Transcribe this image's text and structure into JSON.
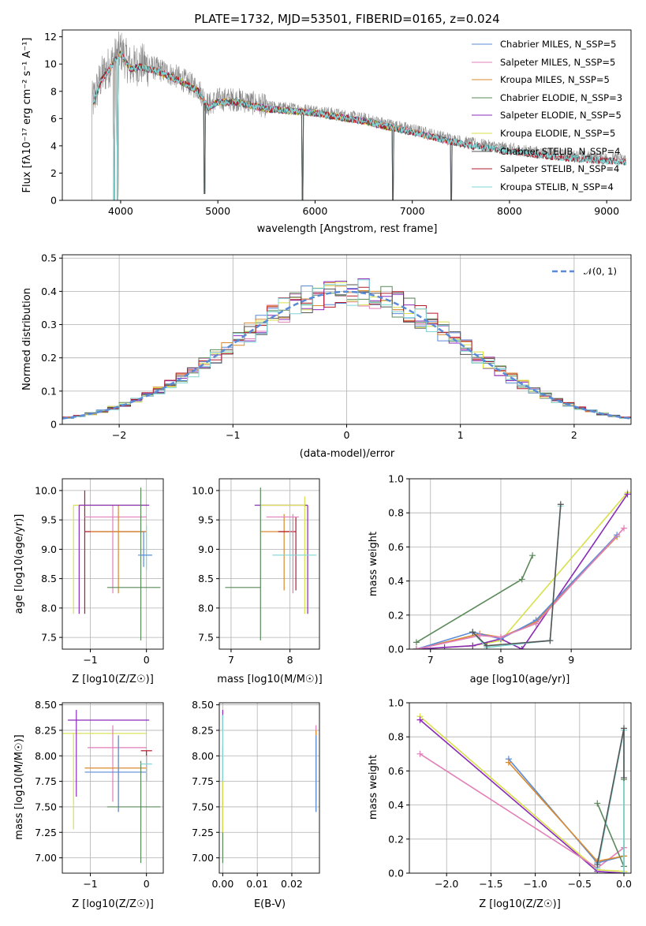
{
  "title": "PLATE=1732, MJD=53501, FIBERID=0165, z=0.024",
  "colors": {
    "chabrier_miles": "#5b8bd6",
    "salpeter_miles": "#e27fb8",
    "kroupa_miles": "#d98a2e",
    "chabrier_elodie": "#5a8a5a",
    "salpeter_elodie": "#8a2bb8",
    "kroupa_elodie": "#d8e04a",
    "chabrier_stelib": "#555555",
    "salpeter_stelib": "#b31b2c",
    "kroupa_stelib": "#7fd6d6",
    "data": "#8a8a8a",
    "normal": "#5b8bd6"
  },
  "spectrum_panel": {
    "xlabel": "wavelength [Angstrom, rest frame]",
    "ylabel": "Flux [fλ10⁻¹⁷ erg cm⁻² s⁻¹ A⁻¹]",
    "legend": [
      "Chabrier MILES, N_SSP=5",
      "Salpeter MILES, N_SSP=5",
      "Kroupa MILES, N_SSP=5",
      "Chabrier ELODIE, N_SSP=3",
      "Salpeter ELODIE, N_SSP=5",
      "Kroupa ELODIE, N_SSP=5",
      "Chabrier STELIB, N_SSP=4",
      "Salpeter STELIB, N_SSP=4",
      "Kroupa STELIB, N_SSP=4"
    ]
  },
  "hist_panel": {
    "xlabel": "(data-model)/error",
    "ylabel": "Normed distribution",
    "legend": "𝒩(0, 1)"
  },
  "age_Z": {
    "xlabel": "Z [log10(Z/Z☉)]",
    "ylabel": "age  [log10(age/yr)]"
  },
  "age_mass": {
    "xlabel": "mass [log10(M/M☉)]"
  },
  "age_weight": {
    "xlabel": "age  [log10(age/yr)]",
    "ylabel": "mass weight"
  },
  "mass_Z": {
    "xlabel": "Z [log10(Z/Z☉)]",
    "ylabel": "mass [log10(M/M☉)]"
  },
  "mass_ebv": {
    "xlabel": "E(B-V)"
  },
  "Z_weight": {
    "xlabel": "Z [log10(Z/Z☉)]",
    "ylabel": "mass weight"
  },
  "chart_data": [
    {
      "type": "line",
      "name": "spectrum",
      "xlim": [
        3400,
        9250
      ],
      "ylim": [
        0,
        12.5
      ],
      "xticks": [
        4000,
        5000,
        6000,
        7000,
        8000,
        9000
      ],
      "yticks": [
        0,
        2,
        4,
        6,
        8,
        10,
        12
      ],
      "continuum": {
        "x": [
          3700,
          3800,
          3900,
          4000,
          4100,
          4200,
          4400,
          4600,
          4800,
          4900,
          5000,
          5200,
          5500,
          6000,
          6500,
          7000,
          7400,
          7600,
          7800,
          8000,
          8200,
          8600,
          9000,
          9200
        ],
        "y": [
          7.0,
          9.0,
          10.0,
          11.0,
          9.8,
          10.0,
          9.6,
          9.0,
          8.2,
          7.0,
          7.4,
          7.4,
          6.9,
          6.6,
          6.0,
          5.2,
          4.5,
          4.2,
          4.0,
          3.8,
          3.6,
          3.3,
          3.1,
          3.0
        ]
      },
      "dips": [
        {
          "x": 3934,
          "y": 0
        },
        {
          "x": 3968,
          "y": 0
        },
        {
          "x": 4861,
          "y": 0.5
        },
        {
          "x": 5870,
          "y": 0
        },
        {
          "x": 6800,
          "y": 0
        },
        {
          "x": 7400,
          "y": 0
        }
      ]
    },
    {
      "type": "line",
      "name": "residual histogram",
      "xlim": [
        -2.5,
        2.5
      ],
      "ylim": [
        0,
        0.51
      ],
      "xticks": [
        -2,
        -1,
        0,
        1,
        2
      ],
      "yticks": [
        0.0,
        0.1,
        0.2,
        0.3,
        0.4,
        0.5
      ],
      "normal": {
        "mean": 0,
        "sigma": 1
      }
    },
    {
      "type": "scatter",
      "name": "age vs Z",
      "xlim": [
        -1.5,
        0.3
      ],
      "ylim": [
        7.3,
        10.2
      ],
      "xticks": [
        -1,
        0
      ],
      "yticks": [
        7.5,
        8.0,
        8.5,
        9.0,
        9.5,
        10.0
      ],
      "points": [
        {
          "x": -1.1,
          "y": 9.3,
          "xe": [
            -1.1,
            0.0
          ],
          "ye": [
            7.9,
            10.0
          ],
          "c": "salpeter_stelib"
        },
        {
          "x": -0.6,
          "y": 9.55,
          "xe": [
            -1.1,
            0.0
          ],
          "ye": [
            8.25,
            9.75
          ],
          "c": "salpeter_miles"
        },
        {
          "x": -0.5,
          "y": 9.3,
          "xe": [
            -1.0,
            0.0
          ],
          "ye": [
            8.25,
            9.75
          ],
          "c": "kroupa_miles"
        },
        {
          "x": -1.3,
          "y": 9.75,
          "xe": [
            -1.3,
            0.0
          ],
          "ye": [
            7.9,
            9.75
          ],
          "c": "kroupa_elodie"
        },
        {
          "x": -1.2,
          "y": 9.75,
          "xe": [
            -1.2,
            0.05
          ],
          "ye": [
            7.9,
            9.75
          ],
          "c": "salpeter_elodie"
        },
        {
          "x": -0.1,
          "y": 8.35,
          "xe": [
            -0.7,
            0.25
          ],
          "ye": [
            7.45,
            10.05
          ],
          "c": "chabrier_elodie"
        },
        {
          "x": 0.0,
          "y": 8.9,
          "xe": [
            -0.1,
            0.1
          ],
          "ye": [
            8.65,
            9.4
          ],
          "c": "kroupa_stelib"
        },
        {
          "x": -0.05,
          "y": 8.9,
          "xe": [
            -0.15,
            0.1
          ],
          "ye": [
            8.7,
            9.3
          ],
          "c": "chabrier_miles"
        }
      ]
    },
    {
      "type": "scatter",
      "name": "age vs mass",
      "xlim": [
        6.8,
        8.5
      ],
      "ylim": [
        7.3,
        10.2
      ],
      "xticks": [
        7,
        8
      ],
      "yticks": [
        7.5,
        8.0,
        8.5,
        9.0,
        9.5,
        10.0
      ],
      "points": [
        {
          "x": 7.9,
          "y": 9.3,
          "xe": [
            7.5,
            8.0
          ],
          "ye": [
            8.3,
            9.6
          ],
          "c": "kroupa_miles"
        },
        {
          "x": 8.1,
          "y": 9.3,
          "xe": [
            7.8,
            8.1
          ],
          "ye": [
            8.3,
            9.55
          ],
          "c": "salpeter_stelib"
        },
        {
          "x": 8.05,
          "y": 9.55,
          "xe": [
            7.6,
            8.15
          ],
          "ye": [
            8.25,
            9.6
          ],
          "c": "salpeter_miles"
        },
        {
          "x": 8.3,
          "y": 9.75,
          "xe": [
            7.4,
            8.3
          ],
          "ye": [
            7.9,
            9.75
          ],
          "c": "salpeter_elodie"
        },
        {
          "x": 8.25,
          "y": 9.75,
          "xe": [
            7.5,
            8.25
          ],
          "ye": [
            7.9,
            9.9
          ],
          "c": "kroupa_elodie"
        },
        {
          "x": 7.5,
          "y": 8.35,
          "xe": [
            6.9,
            7.5
          ],
          "ye": [
            7.45,
            10.05
          ],
          "c": "chabrier_elodie"
        },
        {
          "x": 8.0,
          "y": 8.9,
          "xe": [
            7.7,
            8.45
          ],
          "ye": [
            8.5,
            9.5
          ],
          "c": "kroupa_stelib"
        }
      ]
    },
    {
      "type": "line",
      "name": "mass weight vs age",
      "xlim": [
        6.7,
        9.85
      ],
      "ylim": [
        0,
        1.0
      ],
      "xticks": [
        7,
        8,
        9
      ],
      "yticks": [
        0.0,
        0.2,
        0.4,
        0.6,
        0.8,
        1.0
      ],
      "series": [
        {
          "c": "chabrier_elodie",
          "x": [
            6.8,
            8.3,
            8.45
          ],
          "y": [
            0.04,
            0.41,
            0.55
          ]
        },
        {
          "c": "kroupa_elodie",
          "x": [
            6.8,
            7.6,
            8.0,
            9.8
          ],
          "y": [
            0.0,
            0.02,
            0.05,
            0.92
          ]
        },
        {
          "c": "salpeter_elodie",
          "x": [
            6.8,
            7.2,
            7.6,
            8.0,
            8.3,
            9.8
          ],
          "y": [
            0.0,
            0.01,
            0.02,
            0.06,
            0.0,
            0.91
          ]
        },
        {
          "c": "kroupa_miles",
          "x": [
            6.8,
            7.7,
            8.0,
            8.5,
            9.65
          ],
          "y": [
            0.0,
            0.09,
            0.07,
            0.16,
            0.66
          ]
        },
        {
          "c": "chabrier_miles",
          "x": [
            6.8,
            7.6,
            8.0,
            8.5,
            9.65
          ],
          "y": [
            0.0,
            0.1,
            0.06,
            0.17,
            0.67
          ]
        },
        {
          "c": "salpeter_miles",
          "x": [
            6.8,
            7.7,
            8.0,
            8.5,
            9.75
          ],
          "y": [
            0.0,
            0.08,
            0.07,
            0.15,
            0.71
          ]
        },
        {
          "c": "kroupa_stelib",
          "x": [
            7.6,
            7.8,
            8.7,
            8.85
          ],
          "y": [
            0.1,
            0.01,
            0.05,
            0.84
          ]
        },
        {
          "c": "chabrier_stelib",
          "x": [
            7.6,
            7.8,
            8.7,
            8.85
          ],
          "y": [
            0.1,
            0.02,
            0.05,
            0.85
          ]
        }
      ]
    },
    {
      "type": "scatter",
      "name": "mass vs Z",
      "xlim": [
        -1.5,
        0.3
      ],
      "ylim": [
        6.85,
        8.52
      ],
      "xticks": [
        -1,
        0
      ],
      "yticks": [
        7.0,
        7.25,
        7.5,
        7.75,
        8.0,
        8.25,
        8.5
      ],
      "points": [
        {
          "x": -1.3,
          "y": 8.22,
          "xe": [
            -1.5,
            0.0
          ],
          "ye": [
            7.28,
            8.22
          ],
          "c": "kroupa_elodie"
        },
        {
          "x": -1.25,
          "y": 8.35,
          "xe": [
            -1.4,
            0.05
          ],
          "ye": [
            7.6,
            8.45
          ],
          "c": "salpeter_elodie"
        },
        {
          "x": -0.6,
          "y": 8.08,
          "xe": [
            -1.05,
            0.0
          ],
          "ye": [
            7.55,
            8.3
          ],
          "c": "salpeter_miles"
        },
        {
          "x": -0.5,
          "y": 7.88,
          "xe": [
            -1.1,
            0.0
          ],
          "ye": [
            7.45,
            8.2
          ],
          "c": "kroupa_miles"
        },
        {
          "x": -0.5,
          "y": 7.84,
          "xe": [
            -1.1,
            0.0
          ],
          "ye": [
            7.45,
            8.2
          ],
          "c": "chabrier_miles"
        },
        {
          "x": -0.1,
          "y": 7.5,
          "xe": [
            -0.7,
            0.25
          ],
          "ye": [
            6.95,
            7.95
          ],
          "c": "chabrier_elodie"
        },
        {
          "x": 0.0,
          "y": 8.05,
          "xe": [
            -0.1,
            0.1
          ],
          "ye": [
            7.75,
            8.05
          ],
          "c": "salpeter_stelib"
        },
        {
          "x": 0.0,
          "y": 7.92,
          "xe": [
            -0.1,
            0.1
          ],
          "ye": [
            7.75,
            8.0
          ],
          "c": "kroupa_stelib"
        }
      ]
    },
    {
      "type": "scatter",
      "name": "mass vs E(B-V)",
      "xlim": [
        -0.001,
        0.028
      ],
      "ylim": [
        6.85,
        8.52
      ],
      "xticks": [
        0.0,
        0.01,
        0.02
      ],
      "yticks": [
        7.0,
        7.25,
        7.5,
        7.75,
        8.0,
        8.25,
        8.5
      ],
      "points": [
        {
          "x": 0.0,
          "y": 8.35,
          "ye": [
            8.25,
            8.45
          ],
          "c": "salpeter_elodie"
        },
        {
          "x": 0.0,
          "y": 7.5,
          "ye": [
            6.95,
            8.1
          ],
          "c": "chabrier_elodie"
        },
        {
          "x": 0.0,
          "y": 7.6,
          "ye": [
            7.25,
            8.25
          ],
          "c": "kroupa_elodie"
        },
        {
          "x": 0.0,
          "y": 7.9,
          "ye": [
            7.75,
            8.4
          ],
          "c": "kroupa_stelib"
        },
        {
          "x": 0.027,
          "y": 7.84,
          "ye": [
            7.45,
            8.3
          ],
          "c": "salpeter_miles"
        },
        {
          "x": 0.027,
          "y": 7.88,
          "ye": [
            7.55,
            8.25
          ],
          "c": "kroupa_miles"
        },
        {
          "x": 0.027,
          "y": 7.84,
          "ye": [
            7.45,
            8.2
          ],
          "c": "chabrier_miles"
        }
      ]
    },
    {
      "type": "line",
      "name": "mass weight vs Z",
      "xlim": [
        -2.42,
        0.08
      ],
      "ylim": [
        0,
        1.0
      ],
      "xticks": [
        -2.0,
        -1.5,
        -1.0,
        -0.5,
        0.0
      ],
      "yticks": [
        0.0,
        0.2,
        0.4,
        0.6,
        0.8,
        1.0
      ],
      "series": [
        {
          "c": "kroupa_elodie",
          "x": [
            -2.3,
            -0.3,
            0.0
          ],
          "y": [
            0.92,
            0.02,
            0.01
          ]
        },
        {
          "c": "salpeter_elodie",
          "x": [
            -2.3,
            -0.3,
            0.0
          ],
          "y": [
            0.9,
            0.01,
            0.0
          ]
        },
        {
          "c": "salpeter_miles",
          "x": [
            -2.3,
            -0.3,
            0.0
          ],
          "y": [
            0.7,
            0.03,
            0.15
          ]
        },
        {
          "c": "chabrier_miles",
          "x": [
            -1.3,
            -0.3,
            0.0
          ],
          "y": [
            0.67,
            0.06,
            0.1
          ]
        },
        {
          "c": "kroupa_miles",
          "x": [
            -1.3,
            -0.3,
            0.0
          ],
          "y": [
            0.65,
            0.07,
            0.1
          ]
        },
        {
          "c": "chabrier_elodie",
          "x": [
            -0.3,
            0.0,
            0.0
          ],
          "y": [
            0.41,
            0.04,
            0.55
          ]
        },
        {
          "c": "kroupa_stelib",
          "x": [
            -0.3,
            0.0,
            0.0
          ],
          "y": [
            0.03,
            0.84,
            0.0
          ]
        },
        {
          "c": "chabrier_stelib",
          "x": [
            -0.3,
            0.0,
            0.0
          ],
          "y": [
            0.05,
            0.85,
            0.56
          ]
        }
      ]
    }
  ]
}
